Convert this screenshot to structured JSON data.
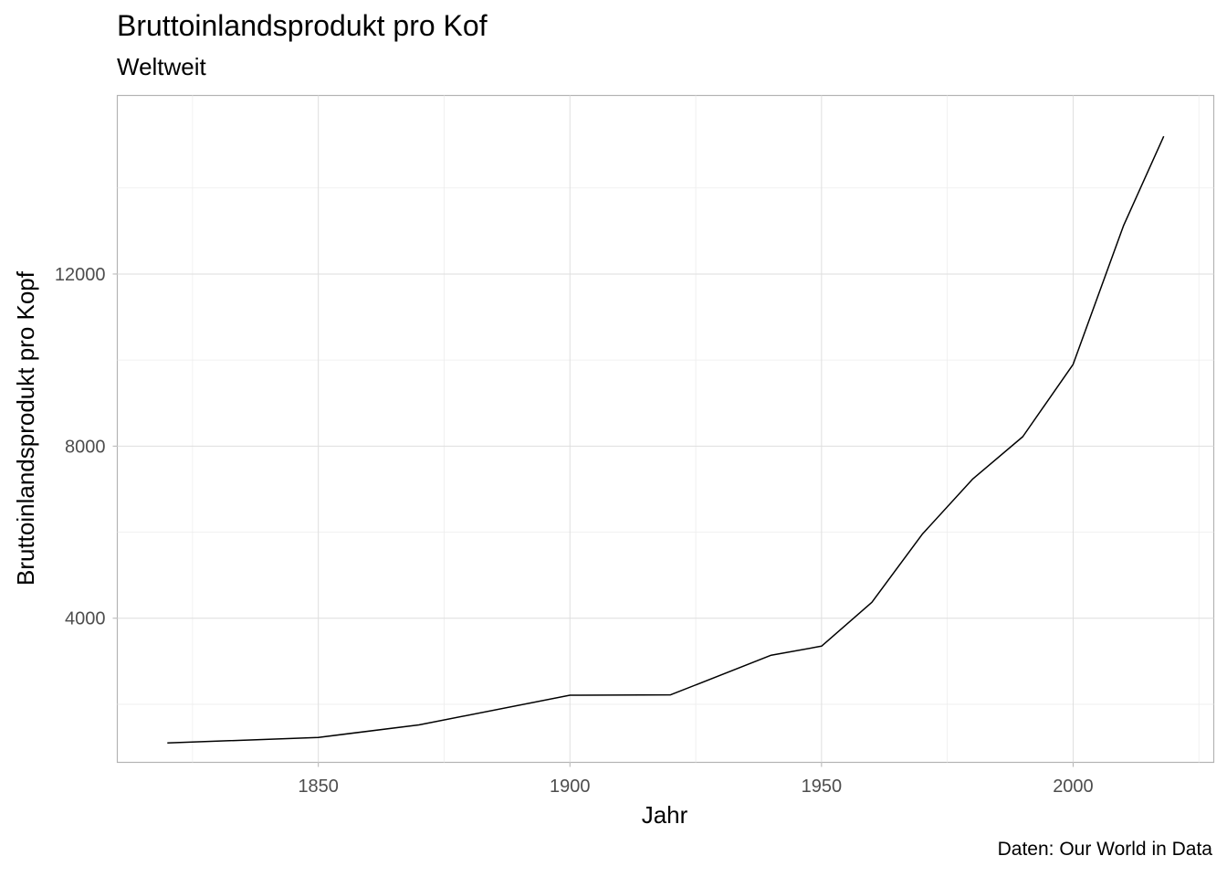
{
  "chart_data": {
    "type": "line",
    "title": "Bruttoinlandsprodukt pro Kof",
    "subtitle": "Weltweit",
    "xlabel": "Jahr",
    "ylabel": "Bruttoinlandsprodukt pro Kopf",
    "caption": "Daten: Our World in Data",
    "xlim": [
      1810.05,
      2027.95
    ],
    "ylim": [
      650,
      16150
    ],
    "x_ticks": [
      1850,
      1900,
      1950,
      2000
    ],
    "y_ticks": [
      4000,
      8000,
      12000
    ],
    "grid": true,
    "series": [
      {
        "points": [
          [
            1820,
            1100
          ],
          [
            1850,
            1230
          ],
          [
            1870,
            1520
          ],
          [
            1900,
            2210
          ],
          [
            1920,
            2220
          ],
          [
            1940,
            3140
          ],
          [
            1950,
            3350
          ],
          [
            1960,
            4370
          ],
          [
            1970,
            5950
          ],
          [
            1980,
            7230
          ],
          [
            1990,
            8220
          ],
          [
            2000,
            9900
          ],
          [
            2010,
            13120
          ],
          [
            2018,
            15200
          ]
        ]
      }
    ]
  }
}
